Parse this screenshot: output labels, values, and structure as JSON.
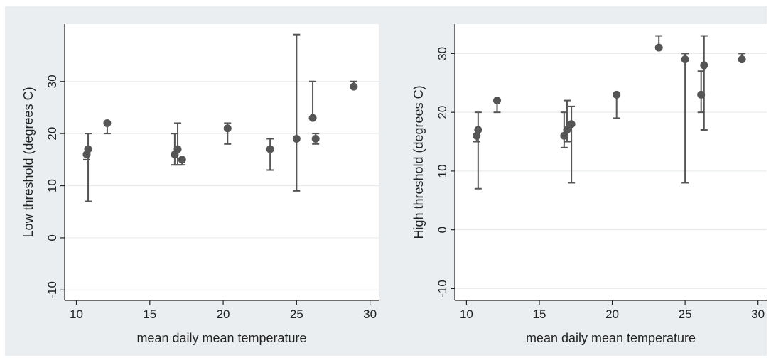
{
  "chart_data": [
    {
      "type": "scatter",
      "title": "",
      "xlabel": "mean daily mean temperature",
      "ylabel": "Low threshold (degrees C)",
      "xlim": [
        9.2,
        30.6
      ],
      "ylim": [
        -12,
        41
      ],
      "xticks": [
        10,
        15,
        20,
        25,
        30
      ],
      "yticks": [
        -10,
        0,
        10,
        20,
        30
      ],
      "grid": true,
      "error_bars": true,
      "points": [
        {
          "x": 10.7,
          "y": 16,
          "lo": 15,
          "hi": 15
        },
        {
          "x": 10.8,
          "y": 17,
          "lo": 7,
          "hi": 20
        },
        {
          "x": 12.1,
          "y": 22,
          "lo": 20,
          "hi": 22
        },
        {
          "x": 16.7,
          "y": 16,
          "lo": 14,
          "hi": 20
        },
        {
          "x": 16.9,
          "y": 17,
          "lo": 14,
          "hi": 22
        },
        {
          "x": 17.2,
          "y": 15,
          "lo": 14,
          "hi": 15
        },
        {
          "x": 20.3,
          "y": 21,
          "lo": 18,
          "hi": 22
        },
        {
          "x": 23.2,
          "y": 17,
          "lo": 13,
          "hi": 19
        },
        {
          "x": 25.0,
          "y": 19,
          "lo": 9,
          "hi": 39
        },
        {
          "x": 26.1,
          "y": 23,
          "lo": 23,
          "hi": 30
        },
        {
          "x": 26.3,
          "y": 19,
          "lo": 18,
          "hi": 20
        },
        {
          "x": 28.9,
          "y": 29,
          "lo": 29,
          "hi": 30
        }
      ]
    },
    {
      "type": "scatter",
      "title": "",
      "xlabel": "mean daily mean temperature",
      "ylabel": "High threshold (degrees C)",
      "xlim": [
        9.2,
        30.6
      ],
      "ylim": [
        -12,
        35
      ],
      "xticks": [
        10,
        15,
        20,
        25,
        30
      ],
      "yticks": [
        -10,
        0,
        10,
        20,
        30
      ],
      "grid": true,
      "error_bars": true,
      "points": [
        {
          "x": 10.7,
          "y": 16,
          "lo": 15,
          "hi": 16
        },
        {
          "x": 10.8,
          "y": 17,
          "lo": 7,
          "hi": 20
        },
        {
          "x": 12.1,
          "y": 22,
          "lo": 20,
          "hi": 22
        },
        {
          "x": 16.7,
          "y": 16,
          "lo": 14,
          "hi": 20
        },
        {
          "x": 16.9,
          "y": 17,
          "lo": 15,
          "hi": 22
        },
        {
          "x": 17.2,
          "y": 18,
          "lo": 8,
          "hi": 21
        },
        {
          "x": 20.3,
          "y": 23,
          "lo": 19,
          "hi": 23
        },
        {
          "x": 23.2,
          "y": 31,
          "lo": 31,
          "hi": 33
        },
        {
          "x": 25.0,
          "y": 29,
          "lo": 8,
          "hi": 30
        },
        {
          "x": 26.1,
          "y": 23,
          "lo": 20,
          "hi": 27
        },
        {
          "x": 26.3,
          "y": 28,
          "lo": 17,
          "hi": 33
        },
        {
          "x": 28.9,
          "y": 29,
          "lo": 29,
          "hi": 30
        }
      ]
    }
  ],
  "colors": {
    "background": "#eaeef0",
    "plot_area": "#ffffff",
    "marker": "#555555",
    "error_bar": "#555555",
    "gridline": "#e8ecee",
    "axis": "#222222"
  }
}
